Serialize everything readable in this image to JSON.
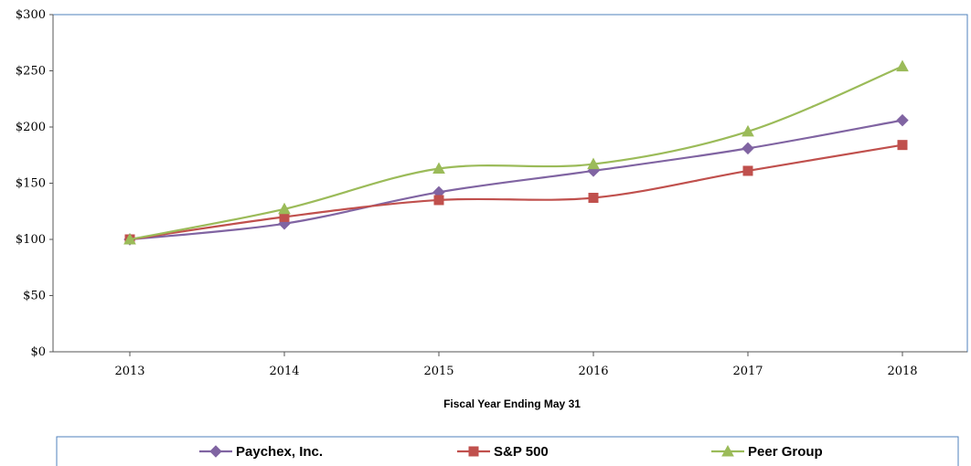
{
  "chart_data": {
    "type": "line",
    "xlabel": "Fiscal Year Ending May 31",
    "ylabel": "",
    "categories": [
      "2013",
      "2014",
      "2015",
      "2016",
      "2017",
      "2018"
    ],
    "ylim": [
      0,
      300
    ],
    "yticks": [
      0,
      50,
      100,
      150,
      200,
      250,
      300
    ],
    "ytick_labels": [
      "$0",
      "$50",
      "$100",
      "$150",
      "$200",
      "$250",
      "$300"
    ],
    "grid": false,
    "legend_position": "bottom",
    "series": [
      {
        "name": "Paychex, Inc.",
        "color": "#8064A2",
        "marker": "diamond",
        "values": [
          100,
          114,
          142,
          161,
          181,
          206
        ]
      },
      {
        "name": "S&P 500",
        "color": "#C0504D",
        "marker": "square",
        "values": [
          100,
          120,
          135,
          137,
          161,
          184
        ]
      },
      {
        "name": "Peer Group",
        "color": "#9BBB59",
        "marker": "triangle",
        "values": [
          100,
          127,
          163,
          167,
          196,
          254
        ]
      }
    ]
  }
}
